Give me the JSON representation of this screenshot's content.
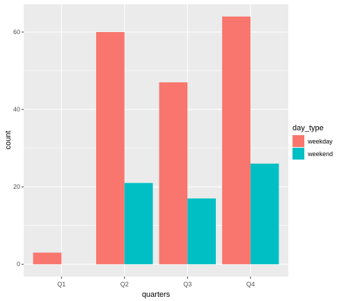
{
  "chart_data": {
    "type": "bar",
    "title": "",
    "xlabel": "quarters",
    "ylabel": "count",
    "categories": [
      "Q1",
      "Q2",
      "Q3",
      "Q4"
    ],
    "ylim": [
      -3.2,
      67.2
    ],
    "yticks": [
      0,
      20,
      40,
      60
    ],
    "grid": true,
    "legend_position": "right",
    "legend_title": "day_type",
    "series": [
      {
        "name": "weekday",
        "color": "#F8766D",
        "values": [
          3,
          60,
          47,
          64
        ]
      },
      {
        "name": "weekend",
        "color": "#00BFC4",
        "values": [
          0,
          21,
          17,
          26
        ]
      }
    ],
    "panel_background": "#EBEBEB",
    "grid_color": "#FFFFFF"
  }
}
